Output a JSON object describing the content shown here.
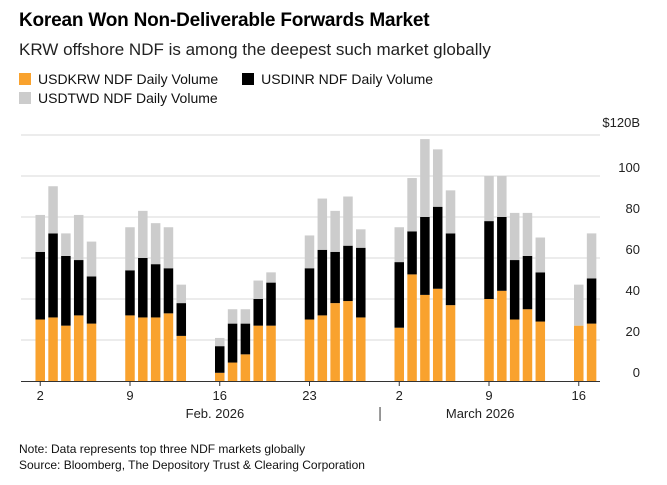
{
  "title": "Korean Won Non-Deliverable Forwards Market",
  "subtitle": "KRW offshore NDF is among the deepest such market globally",
  "note": "Note: Data represents top three NDF markets globally",
  "source": "Source: Bloomberg, The Depository Trust & Clearing Corporation",
  "colors": {
    "krw": "#f9a22e",
    "inr": "#000000",
    "twd": "#cccccc",
    "grid": "#d9d9d9",
    "axis": "#333333"
  },
  "chart_data": {
    "type": "bar",
    "stacked": true,
    "unit_label": "$120B",
    "ylim": [
      0,
      120
    ],
    "yticks": [
      0,
      20,
      40,
      60,
      80,
      100,
      120
    ],
    "ytick_labels": [
      "0",
      "20",
      "40",
      "60",
      "80",
      "100",
      "$120B"
    ],
    "grid": true,
    "legend_position": "top-left",
    "x_start": "2026-02-01",
    "x_end": "2026-03-18",
    "xtick_days": [
      "2026-02-02",
      "2026-02-09",
      "2026-02-16",
      "2026-02-23",
      "2026-03-02",
      "2026-03-09",
      "2026-03-16"
    ],
    "xtick_labels": [
      "2",
      "9",
      "16",
      "23",
      "2",
      "9",
      "16"
    ],
    "month_labels": [
      "Feb. 2026",
      "March 2026"
    ],
    "dates": [
      "2026-02-02",
      "2026-02-03",
      "2026-02-04",
      "2026-02-05",
      "2026-02-06",
      "2026-02-09",
      "2026-02-10",
      "2026-02-11",
      "2026-02-12",
      "2026-02-13",
      "2026-02-16",
      "2026-02-17",
      "2026-02-18",
      "2026-02-19",
      "2026-02-20",
      "2026-02-23",
      "2026-02-24",
      "2026-02-25",
      "2026-02-26",
      "2026-02-27",
      "2026-03-02",
      "2026-03-03",
      "2026-03-04",
      "2026-03-05",
      "2026-03-06",
      "2026-03-09",
      "2026-03-10",
      "2026-03-11",
      "2026-03-12",
      "2026-03-13",
      "2026-03-16",
      "2026-03-17"
    ],
    "series": [
      {
        "name": "USDKRW NDF Daily Volume",
        "values": [
          30,
          31,
          27,
          32,
          28,
          32,
          31,
          31,
          33,
          22,
          4,
          9,
          13,
          27,
          27,
          30,
          32,
          38,
          39,
          31,
          26,
          52,
          42,
          45,
          37,
          40,
          44,
          30,
          35,
          29,
          27,
          28
        ]
      },
      {
        "name": "USDINR NDF Daily Volume",
        "values": [
          33,
          41,
          34,
          27,
          23,
          22,
          29,
          26,
          22,
          16,
          13,
          19,
          15,
          13,
          21,
          25,
          32,
          25,
          27,
          34,
          32,
          21,
          38,
          40,
          35,
          38,
          36,
          29,
          26,
          24,
          0,
          22
        ]
      },
      {
        "name": "USDTWD NDF Daily Volume",
        "values": [
          18,
          23,
          11,
          22,
          17,
          21,
          23,
          20,
          20,
          9,
          4,
          7,
          7,
          9,
          5,
          16,
          25,
          20,
          24,
          9,
          17,
          26,
          38,
          28,
          21,
          22,
          20,
          23,
          21,
          17,
          20,
          22
        ]
      }
    ]
  }
}
